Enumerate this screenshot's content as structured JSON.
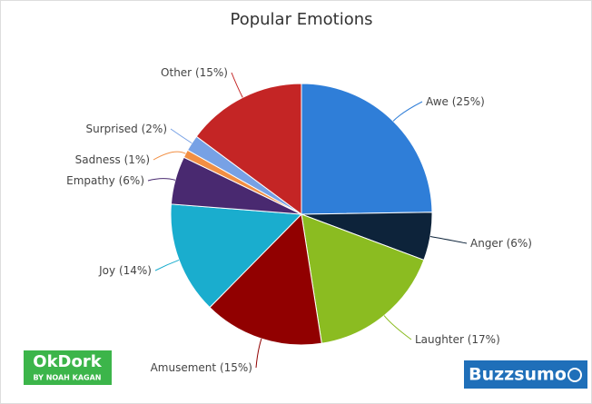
{
  "chart_data": {
    "type": "pie",
    "title": "Popular Emotions",
    "categories": [
      "Awe",
      "Anger",
      "Laughter",
      "Amusement",
      "Joy",
      "Empathy",
      "Sadness",
      "Surprised",
      "Other"
    ],
    "values": [
      25,
      6,
      17,
      15,
      14,
      6,
      1,
      2,
      15
    ],
    "value_labels": [
      "(25%)",
      "(6%)",
      "(17%)",
      "(15%)",
      "(14%)",
      "(6%)",
      "(1%)",
      "(2%)",
      "(15%)"
    ],
    "colors": [
      "#2f7ed8",
      "#0d233a",
      "#8bbc21",
      "#910000",
      "#1aadce",
      "#492970",
      "#f28f43",
      "#77a1e5",
      "#c42525"
    ]
  },
  "logos": {
    "okdork": "OkDork",
    "okdork_sub": "BY NOAH KAGAN",
    "buzzsumo": "Buzzsumo"
  }
}
